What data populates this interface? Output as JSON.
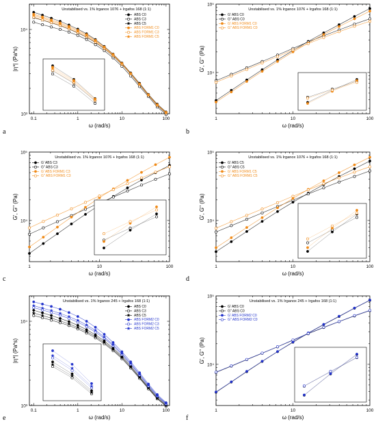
{
  "chart_data": [
    {
      "panel": "a",
      "type": "line",
      "title": "Unstabilised vs. 1% Irganox 1076 + Irgafos 168 (1:1)",
      "xlabel": "ω (rad/s)",
      "ylabel": "|η*| (Pa*s)",
      "xscale": "log",
      "yscale": "log",
      "xlim": [
        0.08,
        120
      ],
      "ylim": [
        1000,
        20000
      ],
      "xticks": [
        0.1,
        1,
        10,
        100
      ],
      "xticklabels": [
        "0.1",
        "1",
        "10",
        "100"
      ],
      "yticks": [
        1000,
        10000
      ],
      "yticklabels": [
        "10³",
        "10⁴"
      ],
      "legend_position": "top-right",
      "x": [
        0.1,
        0.158,
        0.251,
        0.398,
        0.631,
        1,
        1.58,
        2.51,
        3.98,
        6.31,
        10,
        15.8,
        25.1,
        39.8,
        63.1,
        100
      ],
      "series": [
        {
          "name": "ABS C0",
          "marker": "filled-circle",
          "color": "#000000",
          "values": [
            16000,
            14800,
            13600,
            12500,
            11300,
            10100,
            8900,
            7600,
            6300,
            5100,
            4000,
            3050,
            2300,
            1700,
            1300,
            1050
          ]
        },
        {
          "name": "ABS C3",
          "marker": "open-circle",
          "color": "#000000",
          "values": [
            12200,
            11400,
            10700,
            10000,
            9300,
            8500,
            7600,
            6600,
            5600,
            4600,
            3650,
            2800,
            2100,
            1600,
            1200,
            980
          ]
        },
        {
          "name": "ABS C5",
          "marker": "star",
          "color": "#000000",
          "values": [
            13800,
            12900,
            12000,
            11100,
            10100,
            9100,
            8100,
            7000,
            5900,
            4850,
            3850,
            2950,
            2200,
            1650,
            1250,
            1010
          ]
        },
        {
          "name": "ABS FORM1 C0",
          "marker": "filled-circle",
          "color": "#f08a17",
          "values": [
            15200,
            14100,
            13000,
            12000,
            10900,
            9800,
            8700,
            7450,
            6200,
            5050,
            3950,
            3000,
            2250,
            1680,
            1280,
            1040
          ]
        },
        {
          "name": "ABS FORM1 C3",
          "marker": "open-circle",
          "color": "#f08a17",
          "values": [
            14000,
            13000,
            12100,
            11200,
            10200,
            9200,
            8200,
            7100,
            5950,
            4900,
            3870,
            2960,
            2220,
            1660,
            1260,
            1020
          ]
        },
        {
          "name": "ABS FORM1 C5",
          "marker": "star",
          "color": "#f08a17",
          "values": [
            14600,
            13600,
            12600,
            11600,
            10550,
            9500,
            8450,
            7300,
            6100,
            4980,
            3920,
            2990,
            2240,
            1670,
            1270,
            1030
          ]
        }
      ]
    },
    {
      "panel": "b",
      "type": "line",
      "title": "Unstabilised vs. 1% Irganox 1076 + Irgafos 168 (1:1)",
      "xlabel": "ω (rad/s)",
      "ylabel": "G', G'' (Pa)",
      "xscale": "log",
      "yscale": "log",
      "xlim": [
        1,
        100
      ],
      "ylim": [
        2500,
        100000
      ],
      "xticks": [
        1,
        10,
        100
      ],
      "xticklabels": [
        "1",
        "10",
        "100"
      ],
      "yticks": [
        10000,
        100000
      ],
      "yticklabels": [
        "10⁴",
        "10⁵"
      ],
      "legend_position": "top-left",
      "x": [
        1,
        1.58,
        2.51,
        3.98,
        6.31,
        10,
        15.8,
        25.1,
        39.8,
        63.1,
        100
      ],
      "series": [
        {
          "name": "G' ABS C0",
          "marker": "filled-circle",
          "color": "#000000",
          "values": [
            3900,
            5500,
            7800,
            11000,
            15300,
            21000,
            28500,
            38000,
            50000,
            66000,
            86000
          ]
        },
        {
          "name": "G'' ABS C0",
          "marker": "open-circle",
          "color": "#000000",
          "values": [
            7600,
            9400,
            11700,
            14500,
            18000,
            22500,
            28000,
            34500,
            42000,
            51000,
            61000
          ]
        },
        {
          "name": "G' ABS FORM1 C0",
          "marker": "filled-circle",
          "color": "#f08a17",
          "values": [
            3700,
            5200,
            7400,
            10400,
            14500,
            20000,
            27000,
            36000,
            47000,
            61000,
            79000
          ]
        },
        {
          "name": "G'' ABS FORM1 C0",
          "marker": "open-circle",
          "color": "#f08a17",
          "values": [
            7200,
            8900,
            11100,
            13800,
            17100,
            21400,
            26500,
            32500,
            39500,
            47500,
            56000
          ]
        }
      ]
    },
    {
      "panel": "c",
      "type": "line",
      "title": "Unstabilised vs. 1% Irganox 1076 + Irgafos 168 (1:1)",
      "xlabel": "ω (rad/s)",
      "ylabel": "G', G'' (Pa)",
      "xscale": "log",
      "yscale": "log",
      "xlim": [
        1,
        100
      ],
      "ylim": [
        2500,
        100000
      ],
      "xticks": [
        1,
        10,
        100
      ],
      "xticklabels": [
        "1",
        "10",
        "100"
      ],
      "yticks": [
        10000,
        100000
      ],
      "yticklabels": [
        "10⁴",
        "10⁵"
      ],
      "legend_position": "top-left",
      "x": [
        1,
        1.58,
        2.51,
        3.98,
        6.31,
        10,
        15.8,
        25.1,
        39.8,
        63.1,
        100
      ],
      "series": [
        {
          "name": "G' ABS C3",
          "marker": "filled-circle",
          "color": "#000000",
          "values": [
            3300,
            4600,
            6400,
            8900,
            12300,
            16800,
            22500,
            30000,
            39000,
            50000,
            64000
          ]
        },
        {
          "name": "G'' ABS C3",
          "marker": "open-circle",
          "color": "#000000",
          "values": [
            6300,
            7800,
            9600,
            11800,
            14600,
            18000,
            22000,
            27000,
            33000,
            40000,
            48000
          ]
        },
        {
          "name": "G' ABS FORM1 C3",
          "marker": "filled-circle",
          "color": "#f08a17",
          "values": [
            4100,
            5700,
            8000,
            11200,
            15600,
            21500,
            29000,
            38500,
            50500,
            65500,
            84000
          ]
        },
        {
          "name": "G'' ABS FORM1 C3",
          "marker": "open-circle",
          "color": "#f08a17",
          "values": [
            7800,
            9700,
            12000,
            14800,
            18400,
            22800,
            28200,
            34500,
            42000,
            51000,
            61000
          ]
        }
      ]
    },
    {
      "panel": "d",
      "type": "line",
      "title": "Unstabilised vs. 1% Irganox 1076 + Irgafos 168 (1:1)",
      "xlabel": "ω (rad/s)",
      "ylabel": "G', G'' (Pa)",
      "xscale": "log",
      "yscale": "log",
      "xlim": [
        1,
        100
      ],
      "ylim": [
        2500,
        100000
      ],
      "xticks": [
        1,
        10,
        100
      ],
      "xticklabels": [
        "1",
        "10",
        "100"
      ],
      "yticks": [
        10000,
        100000
      ],
      "yticklabels": [
        "10⁴",
        "10⁵"
      ],
      "legend_position": "top-left",
      "x": [
        1,
        1.58,
        2.51,
        3.98,
        6.31,
        10,
        15.8,
        25.1,
        39.8,
        63.1,
        100
      ],
      "series": [
        {
          "name": "G' ABS C5",
          "marker": "filled-circle",
          "color": "#000000",
          "values": [
            3500,
            4900,
            6900,
            9700,
            13500,
            18500,
            25000,
            33500,
            44000,
            57000,
            74000
          ]
        },
        {
          "name": "G'' ABS C5",
          "marker": "open-circle",
          "color": "#000000",
          "values": [
            6800,
            8400,
            10400,
            12900,
            16000,
            19800,
            24400,
            30000,
            36500,
            44000,
            53000
          ]
        },
        {
          "name": "G' ABS FORM1 C5",
          "marker": "filled-circle",
          "color": "#f08a17",
          "values": [
            4000,
            5600,
            7900,
            11000,
            15300,
            21000,
            28500,
            38000,
            50000,
            65000,
            84000
          ]
        },
        {
          "name": "G'' ABS FORM1 C5",
          "marker": "open-circle",
          "color": "#f08a17",
          "values": [
            7700,
            9600,
            11900,
            14700,
            18200,
            22600,
            28000,
            34500,
            42000,
            51000,
            61000
          ]
        }
      ]
    },
    {
      "panel": "e",
      "type": "line",
      "title": "Unstabilised vs. 1% Irganox 245 + Irgafos 168 (1:1)",
      "xlabel": "ω (rad/s)",
      "ylabel": "|η*| (Pa*s)",
      "xscale": "log",
      "yscale": "log",
      "xlim": [
        0.08,
        120
      ],
      "ylim": [
        1000,
        20000
      ],
      "xticks": [
        0.1,
        1,
        10,
        100
      ],
      "xticklabels": [
        "0.1",
        "1",
        "10",
        "100"
      ],
      "yticks": [
        1000,
        10000
      ],
      "yticklabels": [
        "10³",
        "10⁴"
      ],
      "legend_position": "top-right",
      "x": [
        0.1,
        0.158,
        0.251,
        0.398,
        0.631,
        1,
        1.58,
        2.51,
        3.98,
        6.31,
        10,
        15.8,
        25.1,
        39.8,
        63.1,
        100
      ],
      "series": [
        {
          "name": "ABS C0",
          "marker": "filled-circle",
          "color": "#000000",
          "values": [
            13500,
            12600,
            11700,
            10800,
            9900,
            8950,
            7950,
            6900,
            5850,
            4800,
            3850,
            2950,
            2200,
            1650,
            1250,
            1020
          ]
        },
        {
          "name": "ABS C3",
          "marker": "open-circle",
          "color": "#000000",
          "values": [
            11700,
            11000,
            10300,
            9600,
            8900,
            8100,
            7250,
            6350,
            5400,
            4480,
            3600,
            2780,
            2100,
            1580,
            1200,
            980
          ]
        },
        {
          "name": "ABS C5",
          "marker": "star",
          "color": "#000000",
          "values": [
            12500,
            11700,
            10900,
            10100,
            9300,
            8450,
            7550,
            6600,
            5600,
            4620,
            3700,
            2850,
            2150,
            1610,
            1220,
            1000
          ]
        },
        {
          "name": "ABS FORM2 C0",
          "marker": "filled-circle",
          "color": "#2233cc",
          "values": [
            17000,
            16000,
            15000,
            13900,
            12700,
            11400,
            10000,
            8500,
            7000,
            5600,
            4350,
            3300,
            2450,
            1800,
            1350,
            1080
          ]
        },
        {
          "name": "ABS FORM2 C3",
          "marker": "open-circle",
          "color": "#2233cc",
          "values": [
            14500,
            13600,
            12700,
            11800,
            10800,
            9750,
            8650,
            7450,
            6250,
            5100,
            4020,
            3080,
            2300,
            1700,
            1290,
            1040
          ]
        },
        {
          "name": "ABS FORM2 C5",
          "marker": "star",
          "color": "#2233cc",
          "values": [
            15300,
            14300,
            13400,
            12400,
            11350,
            10250,
            9050,
            7800,
            6500,
            5280,
            4150,
            3160,
            2350,
            1740,
            1310,
            1060
          ]
        }
      ]
    },
    {
      "panel": "f",
      "type": "line",
      "title": "Unstabilised vs. 1% Irganox 245 + Irgafos 168 (1:1)",
      "xlabel": "ω (rad/s)",
      "ylabel": "G', G'' (Pa)",
      "xscale": "log",
      "yscale": "log",
      "xlim": [
        1,
        100
      ],
      "ylim": [
        2500,
        100000
      ],
      "xticks": [
        1,
        10,
        100
      ],
      "xticklabels": [
        "1",
        "10",
        "100"
      ],
      "yticks": [
        10000,
        100000
      ],
      "yticklabels": [
        "10⁴",
        "10⁵"
      ],
      "legend_position": "top-left",
      "x": [
        1,
        1.58,
        2.51,
        3.98,
        6.31,
        10,
        15.8,
        25.1,
        39.8,
        63.1,
        100
      ],
      "series": [
        {
          "name": "G' ABS C0",
          "marker": "filled-circle",
          "color": "#000000",
          "values": [
            3900,
            5500,
            7800,
            11000,
            15300,
            21000,
            28500,
            38000,
            50000,
            66000,
            86000
          ]
        },
        {
          "name": "G'' ABS C0",
          "marker": "open-circle",
          "color": "#000000",
          "values": [
            7600,
            9400,
            11700,
            14500,
            18000,
            22500,
            28000,
            34500,
            42000,
            51000,
            61000
          ]
        },
        {
          "name": "G' ABS FORM2 C0",
          "marker": "filled-circle",
          "color": "#2233cc",
          "values": [
            3950,
            5550,
            7900,
            11100,
            15400,
            21200,
            28800,
            38400,
            50500,
            66500,
            87000
          ]
        },
        {
          "name": "G'' ABS FORM2 C0",
          "marker": "open-circle",
          "color": "#2233cc",
          "values": [
            7700,
            9500,
            11800,
            14600,
            18100,
            22700,
            28200,
            34800,
            42300,
            51500,
            61500
          ]
        }
      ]
    }
  ]
}
